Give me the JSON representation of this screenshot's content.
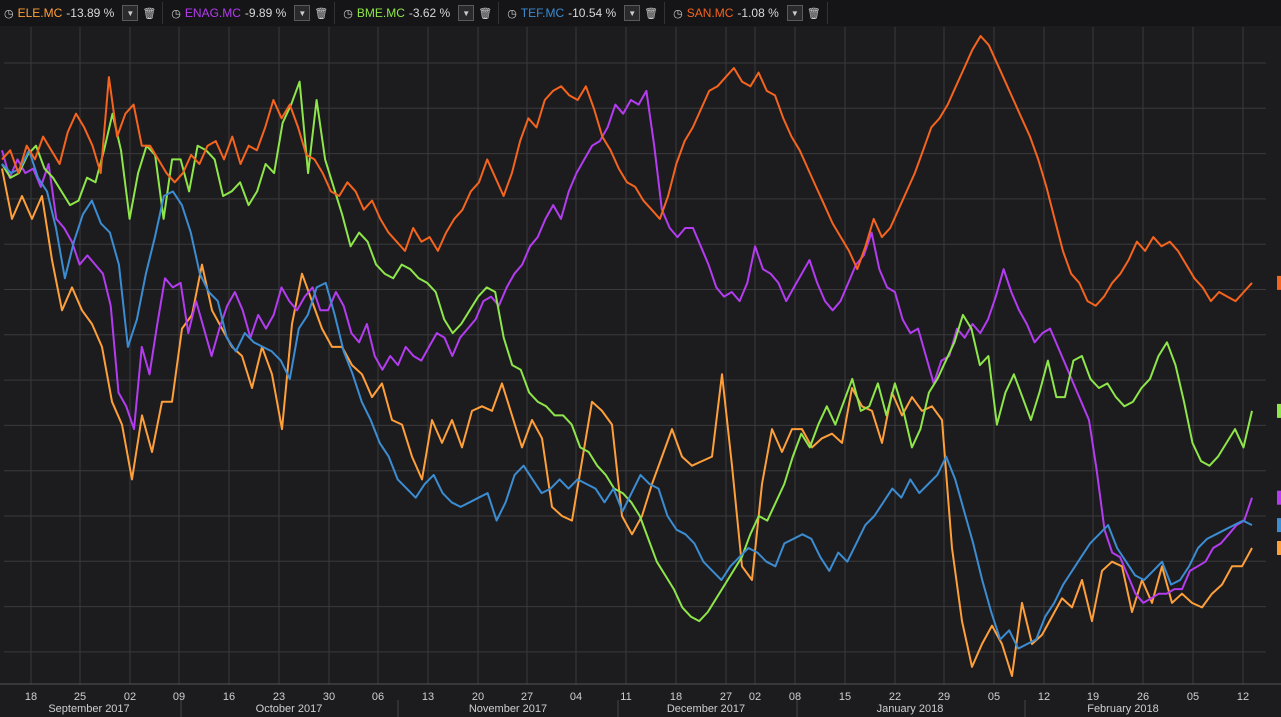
{
  "tickers": [
    {
      "symbol": "ELE.MC",
      "change": "-13.89 %",
      "color": "#ff9f3a"
    },
    {
      "symbol": "ENAG.MC",
      "change": "-9.89 %",
      "color": "#b43cf0"
    },
    {
      "symbol": "BME.MC",
      "change": "-3.62 %",
      "color": "#8ee64a"
    },
    {
      "symbol": "TEF.MC",
      "change": "-10.54 %",
      "color": "#3c8cd2"
    },
    {
      "symbol": "SAN.MC",
      "change": "-1.08 %",
      "color": "#f5641e"
    }
  ],
  "icons": {
    "clock": "clock-icon",
    "dropdown": "chevron-down-icon",
    "delete": "trash-icon"
  },
  "chart_data": {
    "type": "line",
    "x_axis": {
      "day_ticks": [
        "18",
        "25",
        "02",
        "09",
        "16",
        "23",
        "30",
        "06",
        "13",
        "20",
        "27",
        "04",
        "11",
        "18",
        "27",
        "02",
        "08",
        "15",
        "22",
        "29",
        "05",
        "12",
        "19",
        "26",
        "05",
        "12"
      ],
      "month_labels": [
        "September 2017",
        "October 2017",
        "November 2017",
        "December 2017",
        "January 2018",
        "February 2018"
      ]
    },
    "grid": true,
    "y_range": [
      0,
      14
    ],
    "series": [
      {
        "name": "ELE.MC",
        "color": "#ff9f3a",
        "values": [
          11.1,
          10.0,
          10.5,
          10.0,
          10.5,
          9.1,
          8.0,
          8.5,
          8.0,
          7.7,
          7.2,
          6.0,
          5.5,
          4.3,
          5.7,
          4.9,
          6.0,
          6.0,
          7.6,
          7.9,
          9.0,
          8.0,
          7.6,
          7.2,
          7.0,
          6.3,
          7.2,
          6.6,
          5.4,
          7.7,
          8.8,
          8.2,
          7.6,
          7.2,
          7.2,
          6.8,
          6.6,
          6.1,
          6.4,
          5.6,
          5.5,
          4.8,
          4.3,
          5.6,
          5.1,
          5.6,
          5.0,
          5.8,
          5.9,
          5.8,
          6.4,
          5.7,
          5.0,
          5.6,
          5.2,
          3.7,
          3.5,
          3.4,
          4.7,
          6.0,
          5.8,
          5.5,
          3.5,
          3.1,
          3.5,
          4.2,
          4.8,
          5.4,
          4.8,
          4.6,
          4.7,
          4.8,
          6.6,
          4.6,
          2.4,
          2.1,
          4.2,
          5.4,
          4.9,
          5.4,
          5.4,
          5.0,
          5.2,
          5.3,
          5.1,
          6.3,
          5.9,
          5.8,
          5.1,
          6.2,
          5.7,
          6.1,
          5.8,
          5.9,
          5.6,
          2.8,
          1.2,
          0.2,
          0.7,
          1.1,
          0.7,
          0.0,
          1.6,
          0.7,
          0.9,
          1.3,
          1.7,
          1.5,
          2.1,
          1.2,
          2.3,
          2.5,
          2.4,
          1.4,
          2.1,
          1.6,
          2.4,
          1.6,
          1.8,
          1.6,
          1.5,
          1.8,
          2.0,
          2.4,
          2.4,
          2.8
        ]
      },
      {
        "name": "ENAG.MC",
        "color": "#b43cf0",
        "values": [
          11.5,
          10.9,
          11.3,
          11.0,
          11.1,
          10.7,
          11.2,
          10.0,
          9.8,
          9.5,
          9.0,
          9.2,
          9.0,
          8.8,
          8.1,
          6.2,
          5.9,
          5.4,
          7.2,
          6.6,
          7.7,
          8.7,
          8.5,
          8.6,
          7.5,
          8.2,
          7.6,
          7.0,
          7.6,
          8.1,
          8.4,
          8.0,
          7.4,
          7.9,
          7.6,
          7.9,
          8.5,
          8.2,
          8.0,
          8.3,
          8.5,
          8.0,
          8.0,
          8.4,
          8.1,
          7.5,
          7.3,
          7.7,
          7.0,
          6.7,
          7.0,
          6.8,
          7.2,
          7.0,
          6.9,
          7.2,
          7.5,
          7.4,
          7.0,
          7.4,
          7.6,
          7.8,
          8.2,
          8.3,
          8.1,
          8.5,
          8.8,
          9.0,
          9.4,
          9.6,
          10.0,
          10.3,
          10.0,
          10.6,
          11.0,
          11.3,
          11.6,
          11.7,
          12.0,
          12.5,
          12.3,
          12.6,
          12.5,
          12.8,
          11.6,
          10.2,
          9.8,
          9.6,
          9.8,
          9.8,
          9.4,
          9.0,
          8.5,
          8.3,
          8.4,
          8.2,
          8.6,
          9.4,
          8.9,
          8.8,
          8.6,
          8.2,
          8.5,
          8.8,
          9.1,
          8.6,
          8.2,
          8.0,
          8.2,
          8.6,
          9.0,
          9.2,
          9.7,
          8.9,
          8.5,
          8.4,
          7.8,
          7.5,
          7.6,
          7.0,
          6.4,
          6.9,
          7.0,
          7.6,
          7.4,
          7.7,
          7.5,
          7.8,
          8.3,
          8.9,
          8.4,
          8.0,
          7.7,
          7.3,
          7.5,
          7.6,
          7.2,
          6.8,
          6.4,
          6.0,
          5.6,
          4.5,
          3.2,
          2.7,
          2.6,
          2.2,
          1.8,
          1.6,
          1.7,
          1.8,
          1.8,
          1.9,
          1.9,
          2.3,
          2.4,
          2.5,
          2.8,
          2.9,
          3.1,
          3.3,
          3.4,
          3.9
        ]
      },
      {
        "name": "BME.MC",
        "color": "#8ee64a",
        "values": [
          11.2,
          10.9,
          11.0,
          11.4,
          11.6,
          11.1,
          10.9,
          10.6,
          10.3,
          10.4,
          10.9,
          10.8,
          11.5,
          12.3,
          11.5,
          10.0,
          11.0,
          11.6,
          11.4,
          10.0,
          11.3,
          11.3,
          10.6,
          11.6,
          11.5,
          11.3,
          10.5,
          10.6,
          10.8,
          10.3,
          10.6,
          11.2,
          11.0,
          12.1,
          12.5,
          13.0,
          11.0,
          12.6,
          11.3,
          10.7,
          10.1,
          9.4,
          9.7,
          9.5,
          9.0,
          8.8,
          8.7,
          9.0,
          8.9,
          8.7,
          8.6,
          8.4,
          7.8,
          7.5,
          7.7,
          8.0,
          8.3,
          8.5,
          8.4,
          7.4,
          6.8,
          6.7,
          6.2,
          6.0,
          5.9,
          5.7,
          5.7,
          5.5,
          5.0,
          4.9,
          4.6,
          4.4,
          4.1,
          4.0,
          3.8,
          3.5,
          3.0,
          2.5,
          2.2,
          1.9,
          1.5,
          1.3,
          1.2,
          1.4,
          1.7,
          2.0,
          2.3,
          2.6,
          3.1,
          3.5,
          3.4,
          3.8,
          4.2,
          4.8,
          5.3,
          5.0,
          5.5,
          5.9,
          5.5,
          6.0,
          6.5,
          5.8,
          5.9,
          6.4,
          5.7,
          6.4,
          5.8,
          5.0,
          5.4,
          6.2,
          6.5,
          6.9,
          7.3,
          7.9,
          7.6,
          6.8,
          7.0,
          5.5,
          6.2,
          6.6,
          6.1,
          5.6,
          6.2,
          6.9,
          6.1,
          6.1,
          6.9,
          7.0,
          6.5,
          6.3,
          6.4,
          6.1,
          5.9,
          6.0,
          6.3,
          6.5,
          7.0,
          7.3,
          6.8,
          6.0,
          5.1,
          4.7,
          4.6,
          4.8,
          5.1,
          5.4,
          5.0,
          5.8
        ]
      },
      {
        "name": "TEF.MC",
        "color": "#3c8cd2",
        "values": [
          11.2,
          11.0,
          11.1,
          11.5,
          10.9,
          10.6,
          9.8,
          8.7,
          9.5,
          10.1,
          10.4,
          9.9,
          9.7,
          9.0,
          7.2,
          7.8,
          8.8,
          9.6,
          10.5,
          10.6,
          10.3,
          9.7,
          8.8,
          8.4,
          8.2,
          7.4,
          7.1,
          7.5,
          7.3,
          7.2,
          7.1,
          6.9,
          6.5,
          7.6,
          7.9,
          8.5,
          8.6,
          7.9,
          7.1,
          6.6,
          6.0,
          5.6,
          5.1,
          4.8,
          4.3,
          4.1,
          3.9,
          4.2,
          4.4,
          4.0,
          3.8,
          3.7,
          3.8,
          3.9,
          4.0,
          3.4,
          3.8,
          4.4,
          4.6,
          4.3,
          4.0,
          4.1,
          4.3,
          4.1,
          4.3,
          4.2,
          4.1,
          3.8,
          4.1,
          3.6,
          4.0,
          4.4,
          4.2,
          4.1,
          3.5,
          3.2,
          3.1,
          2.9,
          2.5,
          2.3,
          2.1,
          2.4,
          2.6,
          2.8,
          2.7,
          2.5,
          2.4,
          2.9,
          3.0,
          3.1,
          3.0,
          2.6,
          2.3,
          2.7,
          2.5,
          2.9,
          3.3,
          3.5,
          3.8,
          4.1,
          3.9,
          4.3,
          4.0,
          4.2,
          4.4,
          4.8,
          4.3,
          3.6,
          2.9,
          2.1,
          1.4,
          0.8,
          1.0,
          0.6,
          0.7,
          0.8,
          1.3,
          1.6,
          2.0,
          2.3,
          2.6,
          2.9,
          3.1,
          3.3,
          2.8,
          2.5,
          2.2,
          2.1,
          2.3,
          2.5,
          2.0,
          2.1,
          2.4,
          2.8,
          3.0,
          3.1,
          3.2,
          3.3,
          3.4,
          3.3
        ]
      },
      {
        "name": "SAN.MC",
        "color": "#f5641e",
        "values": [
          11.3,
          11.5,
          11.0,
          11.6,
          11.3,
          11.8,
          11.5,
          11.2,
          11.9,
          12.3,
          12.0,
          11.6,
          11.0,
          13.1,
          11.8,
          12.3,
          12.5,
          11.6,
          11.6,
          11.3,
          11.0,
          10.8,
          11.0,
          11.4,
          11.2,
          11.6,
          11.7,
          11.3,
          11.8,
          11.2,
          11.6,
          11.5,
          12.0,
          12.6,
          12.2,
          12.5,
          12.0,
          11.4,
          11.3,
          11.0,
          10.6,
          10.5,
          10.8,
          10.6,
          10.2,
          10.4,
          10.0,
          9.7,
          9.5,
          9.3,
          9.8,
          9.5,
          9.6,
          9.3,
          9.7,
          10.0,
          10.2,
          10.6,
          10.8,
          11.3,
          10.9,
          10.5,
          11.0,
          11.7,
          12.2,
          12.0,
          12.6,
          12.8,
          12.9,
          12.7,
          12.6,
          12.9,
          12.4,
          11.8,
          11.5,
          11.1,
          10.8,
          10.7,
          10.4,
          10.2,
          10.0,
          10.5,
          11.2,
          11.7,
          12.0,
          12.4,
          12.8,
          12.9,
          13.1,
          13.3,
          13.0,
          12.9,
          13.2,
          12.8,
          12.7,
          12.2,
          11.8,
          11.5,
          11.1,
          10.7,
          10.3,
          9.9,
          9.6,
          9.3,
          8.9,
          9.4,
          10.0,
          9.6,
          9.8,
          10.2,
          10.6,
          11.0,
          11.5,
          12.0,
          12.2,
          12.5,
          12.9,
          13.3,
          13.7,
          14.0,
          13.8,
          13.4,
          13.0,
          12.6,
          12.2,
          11.8,
          11.3,
          10.7,
          10.0,
          9.3,
          8.8,
          8.6,
          8.2,
          8.1,
          8.3,
          8.6,
          8.8,
          9.1,
          9.5,
          9.3,
          9.6,
          9.4,
          9.5,
          9.3,
          9.0,
          8.7,
          8.5,
          8.2,
          8.4,
          8.3,
          8.2,
          8.4,
          8.6
        ]
      }
    ]
  }
}
